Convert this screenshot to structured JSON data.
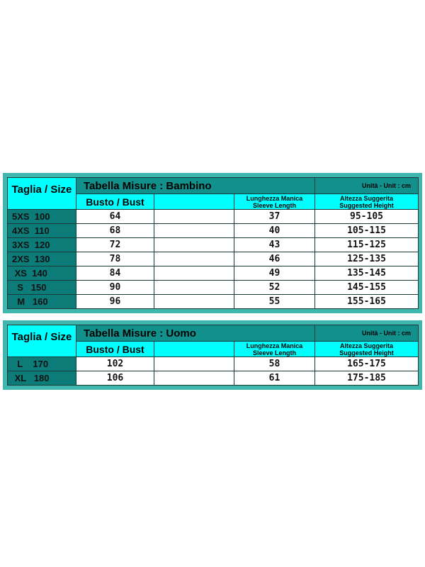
{
  "tables": [
    {
      "size_header": "Taglia / Size",
      "title": "Tabella Misure : Bambino",
      "unit": "Unità - Unit : cm",
      "columns": {
        "bust": "Busto / Bust",
        "sleeve_it": "Lunghezza Manica",
        "sleeve_en": "Sleeve Length",
        "height_it": "Altezza Suggerita",
        "height_en": "Suggested Height"
      },
      "rows": [
        {
          "size": "5XS  100",
          "bust": "64",
          "sleeve": "37",
          "height": "95-105"
        },
        {
          "size": "4XS  110",
          "bust": "68",
          "sleeve": "40",
          "height": "105-115"
        },
        {
          "size": "3XS  120",
          "bust": "72",
          "sleeve": "43",
          "height": "115-125"
        },
        {
          "size": "2XS  130",
          "bust": "78",
          "sleeve": "46",
          "height": "125-135"
        },
        {
          "size": " XS  140",
          "bust": "84",
          "sleeve": "49",
          "height": "135-145"
        },
        {
          "size": "  S   150",
          "bust": "90",
          "sleeve": "52",
          "height": "145-155"
        },
        {
          "size": "  M   160",
          "bust": "96",
          "sleeve": "55",
          "height": "155-165"
        }
      ]
    },
    {
      "size_header": "Taglia / Size",
      "title": "Tabella Misure : Uomo",
      "unit": "Unità - Unit : cm",
      "columns": {
        "bust": "Busto / Bust",
        "sleeve_it": "Lunghezza Manica",
        "sleeve_en": "Sleeve Length",
        "height_it": "Altezza Suggerita",
        "height_en": "Suggested Height"
      },
      "rows": [
        {
          "size": "  L    170",
          "bust": "102",
          "sleeve": "58",
          "height": "165-175"
        },
        {
          "size": " XL   180",
          "bust": "106",
          "sleeve": "61",
          "height": "175-185"
        }
      ]
    }
  ]
}
